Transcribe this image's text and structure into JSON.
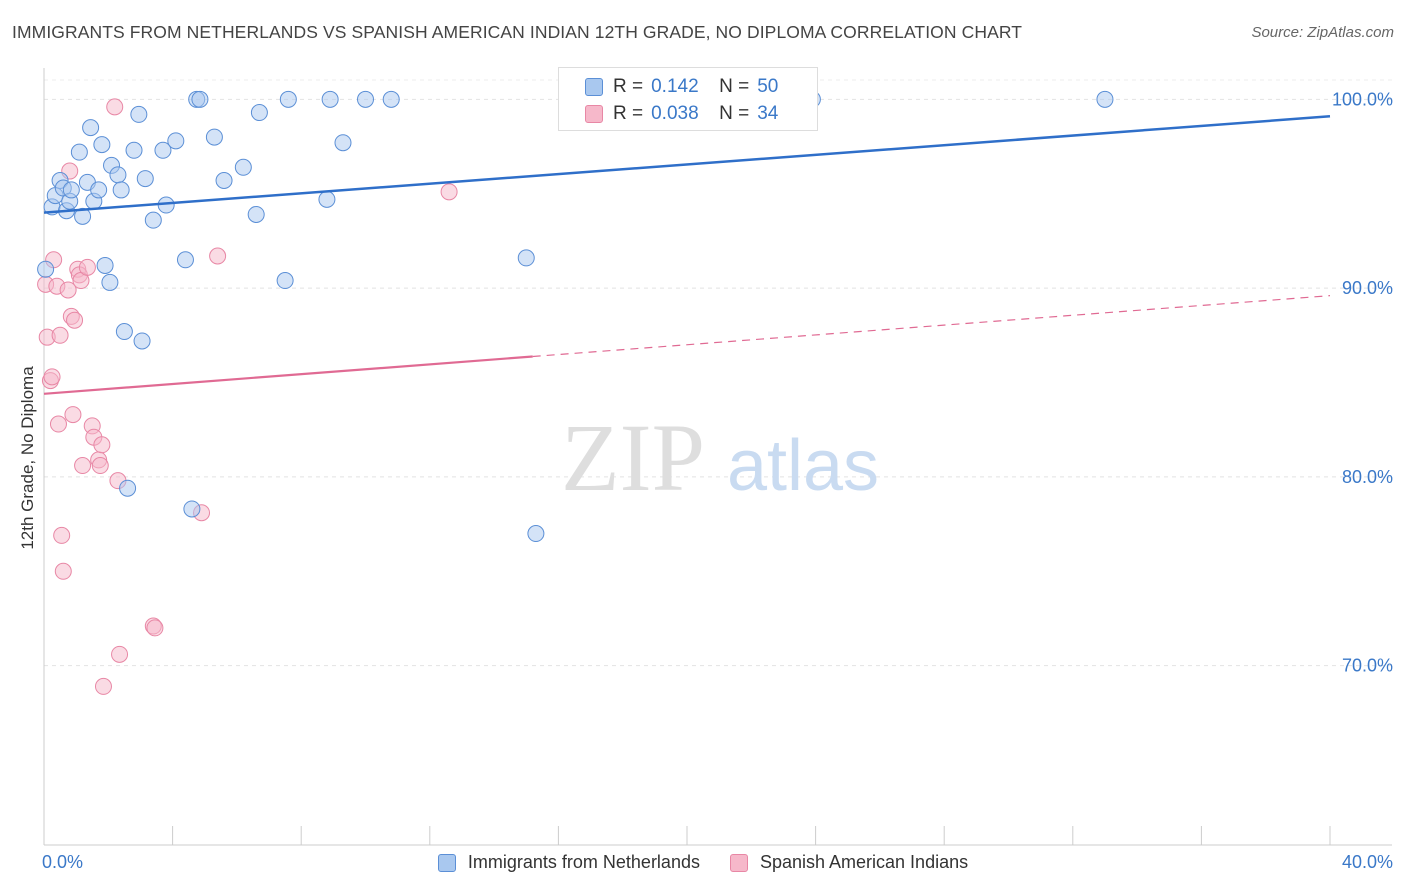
{
  "title": "IMMIGRANTS FROM NETHERLANDS VS SPANISH AMERICAN INDIAN 12TH GRADE, NO DIPLOMA CORRELATION CHART",
  "source": "Source: ZipAtlas.com",
  "watermark": {
    "zip": "ZIP",
    "atlas": "atlas"
  },
  "colors": {
    "blue_fill": "#a9c8ef",
    "blue_stroke": "#5b8fd6",
    "blue_line": "#2f6fc9",
    "pink_fill": "#f6b8ca",
    "pink_stroke": "#e887a5",
    "pink_line": "#e06a93",
    "axis_text": "#3a78c8",
    "grid": "#e2e2e2"
  },
  "legend": {
    "rows": [
      {
        "r_label": "R =",
        "r_value": "0.142",
        "n_label": "N =",
        "n_value": "50"
      },
      {
        "r_label": "R =",
        "r_value": "0.038",
        "n_label": "N =",
        "n_value": "34"
      }
    ]
  },
  "chart_data": {
    "type": "scatter",
    "title": "IMMIGRANTS FROM NETHERLANDS VS SPANISH AMERICAN INDIAN 12TH GRADE, NO DIPLOMA CORRELATION CHART",
    "xlabel": "",
    "ylabel": "12th Grade, No Diploma",
    "xlim": [
      0,
      40
    ],
    "ylim": [
      60.5,
      101.5
    ],
    "x_tick_labels": [
      "0.0%",
      "40.0%"
    ],
    "y_ticks": [
      70,
      80,
      90,
      100
    ],
    "y_tick_labels": [
      "70.0%",
      "80.0%",
      "90.0%",
      "100.0%"
    ],
    "grid": true,
    "legend_position": "bottom",
    "series": [
      {
        "name": "Immigrants from Netherlands",
        "color": "blue",
        "R": 0.142,
        "N": 50,
        "trend": {
          "x": [
            0,
            40
          ],
          "y": [
            94.0,
            99.1
          ],
          "dashed_from": null
        },
        "points": [
          [
            0.05,
            91.0
          ],
          [
            0.25,
            94.3
          ],
          [
            0.35,
            94.9
          ],
          [
            0.5,
            95.7
          ],
          [
            0.6,
            95.3
          ],
          [
            0.7,
            94.1
          ],
          [
            0.8,
            94.6
          ],
          [
            0.85,
            95.2
          ],
          [
            1.1,
            97.2
          ],
          [
            1.2,
            93.8
          ],
          [
            1.35,
            95.6
          ],
          [
            1.45,
            98.5
          ],
          [
            1.55,
            94.6
          ],
          [
            1.7,
            95.2
          ],
          [
            1.8,
            97.6
          ],
          [
            1.9,
            91.2
          ],
          [
            2.05,
            90.3
          ],
          [
            2.1,
            96.5
          ],
          [
            2.3,
            96.0
          ],
          [
            2.4,
            95.2
          ],
          [
            2.5,
            87.7
          ],
          [
            2.6,
            79.4
          ],
          [
            2.8,
            97.3
          ],
          [
            2.95,
            99.2
          ],
          [
            3.05,
            87.2
          ],
          [
            3.15,
            95.8
          ],
          [
            3.4,
            93.6
          ],
          [
            3.7,
            97.3
          ],
          [
            3.8,
            94.4
          ],
          [
            4.1,
            97.8
          ],
          [
            4.4,
            91.5
          ],
          [
            4.6,
            78.3
          ],
          [
            4.75,
            100.0
          ],
          [
            4.85,
            100.0
          ],
          [
            5.3,
            98.0
          ],
          [
            5.6,
            95.7
          ],
          [
            6.2,
            96.4
          ],
          [
            6.6,
            93.9
          ],
          [
            6.7,
            99.3
          ],
          [
            7.5,
            90.4
          ],
          [
            7.6,
            100.0
          ],
          [
            8.8,
            94.7
          ],
          [
            8.9,
            100.0
          ],
          [
            9.3,
            97.7
          ],
          [
            10.0,
            100.0
          ],
          [
            10.8,
            100.0
          ],
          [
            15.0,
            91.6
          ],
          [
            15.3,
            77.0
          ],
          [
            23.9,
            100.0
          ],
          [
            33.0,
            100.0
          ]
        ]
      },
      {
        "name": "Spanish American Indians",
        "color": "pink",
        "R": 0.038,
        "N": 34,
        "trend": {
          "x": [
            0,
            40
          ],
          "y": [
            84.4,
            89.6
          ],
          "dashed_from": 15.2
        },
        "points": [
          [
            0.05,
            90.2
          ],
          [
            0.1,
            87.4
          ],
          [
            0.2,
            85.1
          ],
          [
            0.25,
            85.3
          ],
          [
            0.3,
            91.5
          ],
          [
            0.4,
            90.1
          ],
          [
            0.45,
            82.8
          ],
          [
            0.5,
            87.5
          ],
          [
            0.55,
            76.9
          ],
          [
            0.6,
            75.0
          ],
          [
            0.75,
            89.9
          ],
          [
            0.8,
            96.2
          ],
          [
            0.85,
            88.5
          ],
          [
            0.9,
            83.3
          ],
          [
            0.95,
            88.3
          ],
          [
            1.05,
            91.0
          ],
          [
            1.1,
            90.7
          ],
          [
            1.15,
            90.4
          ],
          [
            1.2,
            80.6
          ],
          [
            1.35,
            91.1
          ],
          [
            1.5,
            82.7
          ],
          [
            1.55,
            82.1
          ],
          [
            1.7,
            80.9
          ],
          [
            1.75,
            80.6
          ],
          [
            1.8,
            81.7
          ],
          [
            2.2,
            99.6
          ],
          [
            2.3,
            79.8
          ],
          [
            2.35,
            70.6
          ],
          [
            1.85,
            68.9
          ],
          [
            3.4,
            72.1
          ],
          [
            3.45,
            72.0
          ],
          [
            4.9,
            78.1
          ],
          [
            5.4,
            91.7
          ],
          [
            12.6,
            95.1
          ]
        ]
      }
    ]
  }
}
